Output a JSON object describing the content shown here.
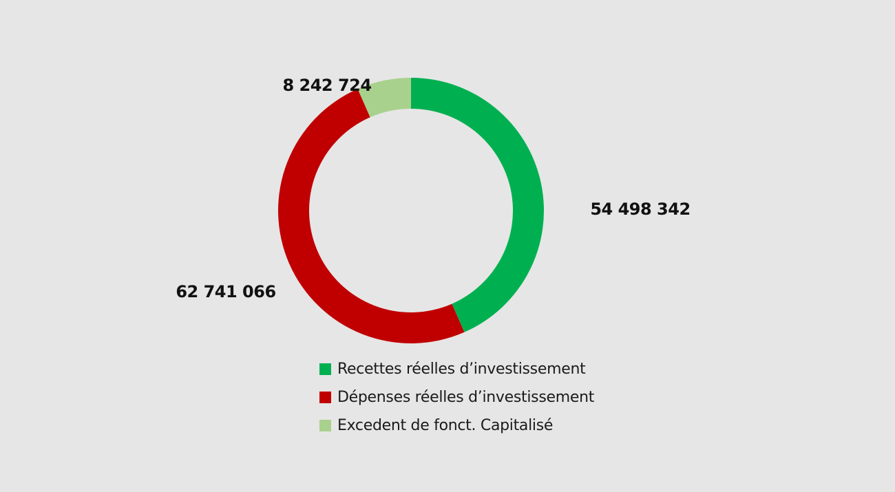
{
  "chart_data": {
    "type": "pie",
    "subtype": "donut",
    "title": "",
    "slices": [
      {
        "name": "Recettes réelles d’investissement",
        "value": 54498342,
        "label": "54 498 342",
        "color": "#00b050"
      },
      {
        "name": "Dépenses réelles d’investissement",
        "value": 62741066,
        "label": "62 741 066",
        "color": "#c00000"
      },
      {
        "name": "Excedent de fonct. Capitalisé",
        "value": 8242724,
        "label": "8 242 724",
        "color": "#a9d18e"
      }
    ],
    "legend_position": "bottom",
    "background": "#e6e6e6"
  }
}
